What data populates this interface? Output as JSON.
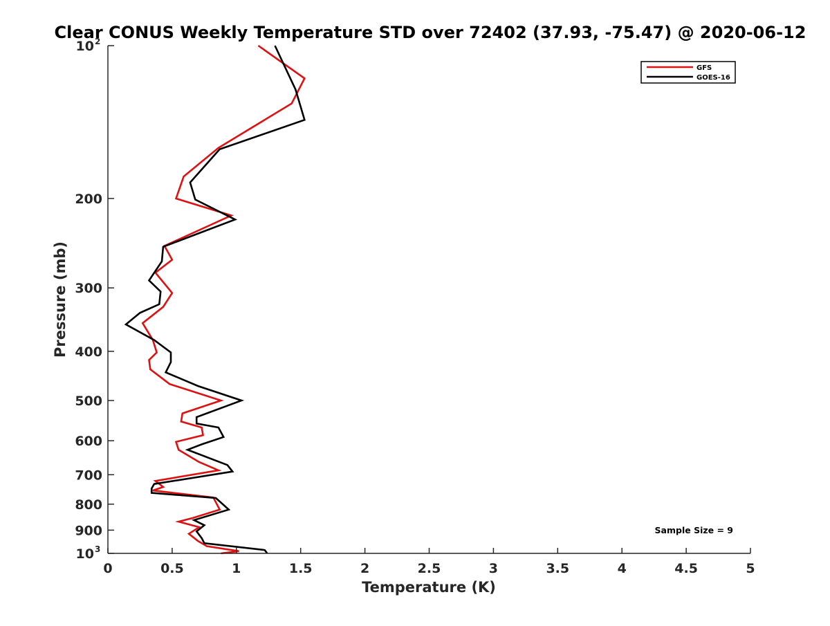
{
  "chart_data": {
    "type": "line",
    "title": "Clear CONUS Weekly Temperature STD over 72402 (37.93, -75.47) @ 2020-06-12",
    "xlabel": "Temperature (K)",
    "ylabel": "Pressure (mb)",
    "xlim": [
      0,
      5
    ],
    "ylim": [
      100,
      1000
    ],
    "y_scale": "log",
    "y_reversed": true,
    "grid": false,
    "legend_position": "top-right",
    "annotation": "Sample Size = 9",
    "x_ticks": [
      "0",
      "0.5",
      "1",
      "1.5",
      "2",
      "2.5",
      "3",
      "3.5",
      "4",
      "4.5",
      "5"
    ],
    "x_tick_values": [
      0,
      0.5,
      1,
      1.5,
      2,
      2.5,
      3,
      3.5,
      4,
      4.5,
      5
    ],
    "y_ticks": [
      {
        "value": 100,
        "base": "10",
        "exp": "2"
      },
      {
        "value": 200,
        "label": "200"
      },
      {
        "value": 300,
        "label": "300"
      },
      {
        "value": 400,
        "label": "400"
      },
      {
        "value": 500,
        "label": "500"
      },
      {
        "value": 600,
        "label": "600"
      },
      {
        "value": 700,
        "label": "700"
      },
      {
        "value": 800,
        "label": "800"
      },
      {
        "value": 900,
        "label": "900"
      },
      {
        "value": 1000,
        "base": "10",
        "exp": "3"
      }
    ],
    "series": [
      {
        "name": "GFS",
        "color": "#dd1111",
        "points": [
          [
            1.17,
            100
          ],
          [
            1.53,
            116
          ],
          [
            1.43,
            130
          ],
          [
            0.86,
            159
          ],
          [
            0.59,
            181
          ],
          [
            0.53,
            200
          ],
          [
            0.96,
            216
          ],
          [
            0.44,
            248
          ],
          [
            0.5,
            264
          ],
          [
            0.37,
            280
          ],
          [
            0.5,
            307
          ],
          [
            0.43,
            327
          ],
          [
            0.27,
            352
          ],
          [
            0.35,
            380
          ],
          [
            0.38,
            402
          ],
          [
            0.32,
            416
          ],
          [
            0.33,
            434
          ],
          [
            0.48,
            464
          ],
          [
            0.88,
            500
          ],
          [
            0.58,
            530
          ],
          [
            0.57,
            550
          ],
          [
            0.73,
            565
          ],
          [
            0.74,
            585
          ],
          [
            0.53,
            603
          ],
          [
            0.55,
            625
          ],
          [
            0.71,
            661
          ],
          [
            0.86,
            686
          ],
          [
            0.37,
            720
          ],
          [
            0.43,
            740
          ],
          [
            0.35,
            752
          ],
          [
            0.82,
            776
          ],
          [
            0.87,
            820
          ],
          [
            0.66,
            852
          ],
          [
            0.55,
            866
          ],
          [
            0.71,
            888
          ],
          [
            0.63,
            915
          ],
          [
            0.7,
            945
          ],
          [
            0.77,
            968
          ],
          [
            1.02,
            990
          ],
          [
            0.88,
            1000
          ]
        ]
      },
      {
        "name": "GOES-16",
        "color": "#000000",
        "points": [
          [
            1.3,
            100
          ],
          [
            1.46,
            122
          ],
          [
            1.53,
            140
          ],
          [
            0.87,
            160
          ],
          [
            0.64,
            186
          ],
          [
            0.68,
            201
          ],
          [
            0.99,
            220
          ],
          [
            0.43,
            249
          ],
          [
            0.42,
            266
          ],
          [
            0.32,
            290
          ],
          [
            0.41,
            305
          ],
          [
            0.4,
            323
          ],
          [
            0.25,
            336
          ],
          [
            0.14,
            354
          ],
          [
            0.36,
            380
          ],
          [
            0.49,
            402
          ],
          [
            0.49,
            420
          ],
          [
            0.45,
            440
          ],
          [
            0.7,
            468
          ],
          [
            1.04,
            500
          ],
          [
            0.69,
            539
          ],
          [
            0.69,
            555
          ],
          [
            0.86,
            565
          ],
          [
            0.9,
            590
          ],
          [
            0.73,
            610
          ],
          [
            0.62,
            625
          ],
          [
            0.93,
            670
          ],
          [
            0.97,
            690
          ],
          [
            0.36,
            730
          ],
          [
            0.34,
            745
          ],
          [
            0.34,
            760
          ],
          [
            0.84,
            778
          ],
          [
            0.94,
            820
          ],
          [
            0.67,
            860
          ],
          [
            0.75,
            880
          ],
          [
            0.69,
            905
          ],
          [
            0.73,
            933
          ],
          [
            0.75,
            955
          ],
          [
            1.22,
            985
          ],
          [
            1.24,
            1000
          ]
        ]
      }
    ]
  }
}
